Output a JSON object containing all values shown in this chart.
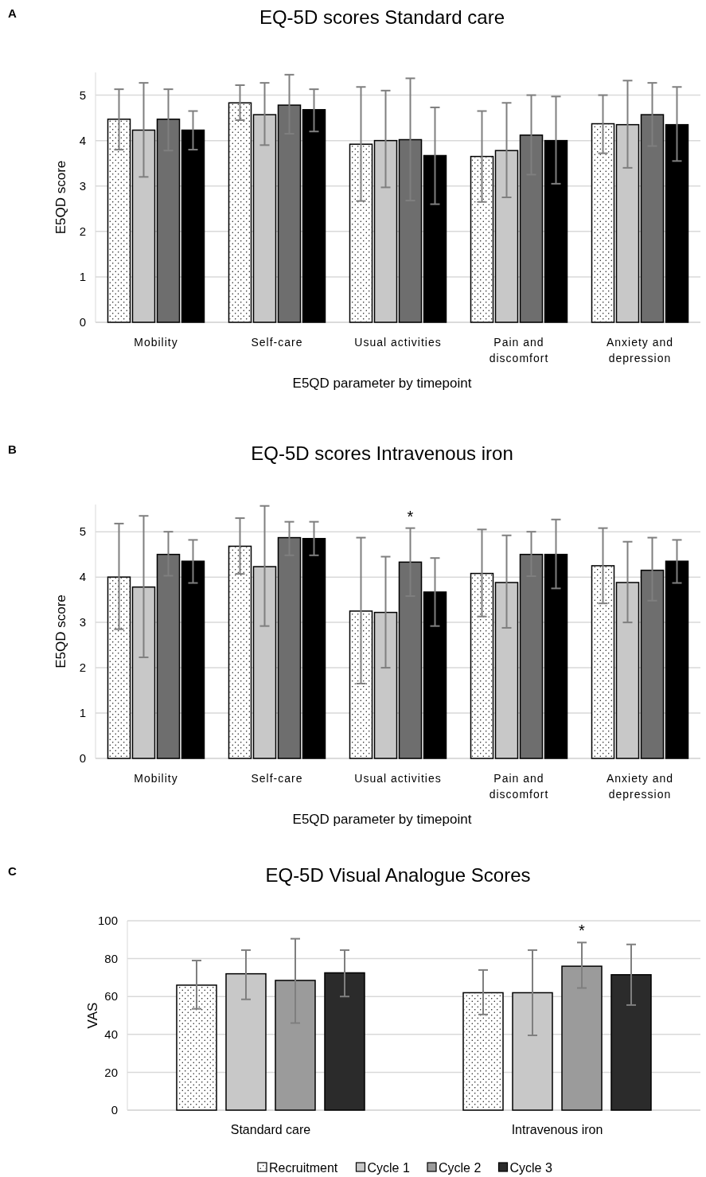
{
  "chart_data": [
    {
      "type": "bar",
      "title": "EQ-5D scores Standard care",
      "xlabel": "E5QD parameter by timepoint",
      "ylabel": "E5QD score",
      "annotations": [
        "A"
      ],
      "categories": [
        "Mobility",
        "Self-care",
        "Usual activities",
        "Pain and discomfort",
        "Anxiety and depression"
      ],
      "series": [
        {
          "color": "#ffffff",
          "values": [
            4.47,
            4.83,
            3.92,
            3.65,
            4.37
          ],
          "errors": [
            [
              3.8,
              5.13
            ],
            [
              4.45,
              5.22
            ],
            [
              2.67,
              5.18
            ],
            [
              2.65,
              4.65
            ],
            [
              3.72,
              5.0
            ]
          ]
        },
        {
          "color": "#c8c8c8",
          "values": [
            4.23,
            4.57,
            4.0,
            3.78,
            4.35
          ],
          "errors": [
            [
              3.2,
              5.27
            ],
            [
              3.9,
              5.27
            ],
            [
              2.97,
              5.1
            ],
            [
              2.75,
              4.83
            ],
            [
              3.4,
              5.32
            ]
          ]
        },
        {
          "color": "#6e6e6e",
          "values": [
            4.47,
            4.78,
            4.02,
            4.12,
            4.57
          ],
          "errors": [
            [
              3.78,
              5.13
            ],
            [
              4.15,
              5.45
            ],
            [
              2.68,
              5.37
            ],
            [
              3.25,
              5.0
            ],
            [
              3.88,
              5.27
            ]
          ]
        },
        {
          "color": "#000000",
          "values": [
            4.23,
            4.68,
            3.67,
            4.0,
            4.35
          ],
          "errors": [
            [
              3.8,
              4.65
            ],
            [
              4.2,
              5.13
            ],
            [
              2.6,
              4.73
            ],
            [
              3.05,
              4.97
            ],
            [
              3.55,
              5.18
            ]
          ]
        }
      ],
      "ylim": [
        0,
        5.5
      ],
      "yticks": [
        0,
        1,
        2,
        3,
        4,
        5
      ],
      "grid": "y",
      "legend": false
    },
    {
      "type": "bar",
      "title": "EQ-5D scores Intravenous iron",
      "xlabel": "E5QD parameter by timepoint",
      "ylabel": "E5QD score",
      "annotations": [
        "B",
        "*"
      ],
      "categories": [
        "Mobility",
        "Self-care",
        "Usual activities",
        "Pain and discomfort",
        "Anxiety and depression"
      ],
      "series": [
        {
          "color": "#ffffff",
          "values": [
            4.0,
            4.68,
            3.25,
            4.08,
            4.25
          ],
          "errors": [
            [
              2.85,
              5.18
            ],
            [
              4.07,
              5.3
            ],
            [
              1.65,
              4.87
            ],
            [
              3.13,
              5.05
            ],
            [
              3.42,
              5.08
            ]
          ]
        },
        {
          "color": "#c8c8c8",
          "values": [
            3.78,
            4.23,
            3.22,
            3.88,
            3.88
          ],
          "errors": [
            [
              2.23,
              5.35
            ],
            [
              2.92,
              5.57
            ],
            [
              2.0,
              4.45
            ],
            [
              2.88,
              4.92
            ],
            [
              3.0,
              4.78
            ]
          ]
        },
        {
          "color": "#6e6e6e",
          "values": [
            4.5,
            4.87,
            4.33,
            4.5,
            4.15
          ],
          "errors": [
            [
              4.03,
              5.0
            ],
            [
              4.48,
              5.22
            ],
            [
              3.58,
              5.08
            ],
            [
              4.02,
              5.0
            ],
            [
              3.48,
              4.87
            ]
          ]
        },
        {
          "color": "#000000",
          "values": [
            4.35,
            4.85,
            3.67,
            4.5,
            4.35
          ],
          "errors": [
            [
              3.87,
              4.82
            ],
            [
              4.48,
              5.22
            ],
            [
              2.92,
              4.42
            ],
            [
              3.75,
              5.27
            ],
            [
              3.87,
              4.82
            ]
          ]
        }
      ],
      "ylim": [
        0,
        5.6
      ],
      "yticks": [
        0,
        1,
        2,
        3,
        4,
        5
      ],
      "grid": "y",
      "legend": false
    },
    {
      "type": "bar",
      "title": "EQ-5D Visual Analogue Scores",
      "ylabel": "VAS",
      "annotations": [
        "C",
        "*"
      ],
      "categories": [
        "Standard care",
        "Intravenous iron"
      ],
      "series": [
        {
          "name": "Recruitment",
          "color": "#ffffff",
          "values": [
            66,
            62
          ],
          "errors": [
            [
              53.5,
              79
            ],
            [
              50.5,
              74
            ]
          ]
        },
        {
          "name": "Cycle 1",
          "color": "#c8c8c8",
          "values": [
            72,
            62
          ],
          "errors": [
            [
              58.5,
              84.5
            ],
            [
              39.5,
              84.5
            ]
          ]
        },
        {
          "name": "Cycle 2",
          "color": "#9b9b9b",
          "values": [
            68.5,
            76
          ],
          "errors": [
            [
              46,
              90.5
            ],
            [
              64.5,
              88.5
            ]
          ]
        },
        {
          "name": "Cycle 3",
          "color": "#2b2b2b",
          "values": [
            72.5,
            71.5
          ],
          "errors": [
            [
              60,
              84.5
            ],
            [
              55.5,
              87.5
            ]
          ]
        }
      ],
      "ylim": [
        0,
        100
      ],
      "yticks": [
        0,
        20,
        40,
        60,
        80,
        100
      ],
      "grid": "y",
      "legend": "bottom"
    }
  ]
}
